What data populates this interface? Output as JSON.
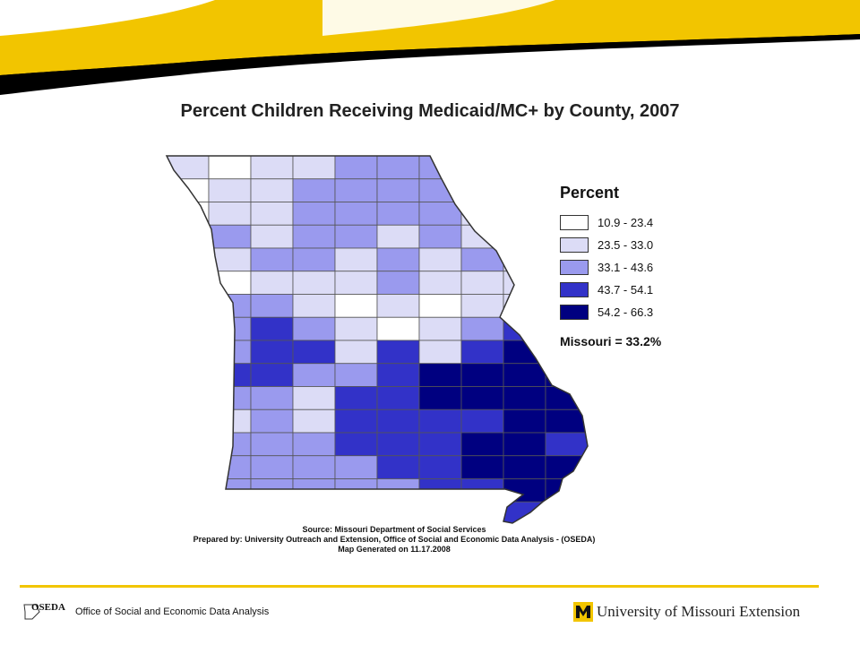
{
  "title": "Percent Children Receiving Medicaid/MC+ by County, 2007",
  "legend": {
    "title": "Percent",
    "classes": [
      {
        "label": "10.9 - 23.4",
        "color": "#ffffff"
      },
      {
        "label": "23.5 - 33.0",
        "color": "#dcdcf6"
      },
      {
        "label": "33.1 - 43.6",
        "color": "#9a9aee"
      },
      {
        "label": "43.7 - 54.1",
        "color": "#3232c8"
      },
      {
        "label": "54.2 - 66.3",
        "color": "#000080"
      }
    ],
    "summary": "Missouri = 33.2%"
  },
  "source": {
    "line1": "Source:  Missouri Department of Social Services",
    "line2": "Prepared by: University Outreach and Extension, Office of Social and Economic Data Analysis - (OSEDA)",
    "line3": "Map Generated on 11.17.2008"
  },
  "footer": {
    "oseda_logo_text": "OSEDA",
    "oseda_name": "Office of Social and Economic Data Analysis",
    "university_name": "University of Missouri Extension"
  },
  "colors": {
    "brand_gold": "#f2c500",
    "brand_black": "#000000"
  }
}
